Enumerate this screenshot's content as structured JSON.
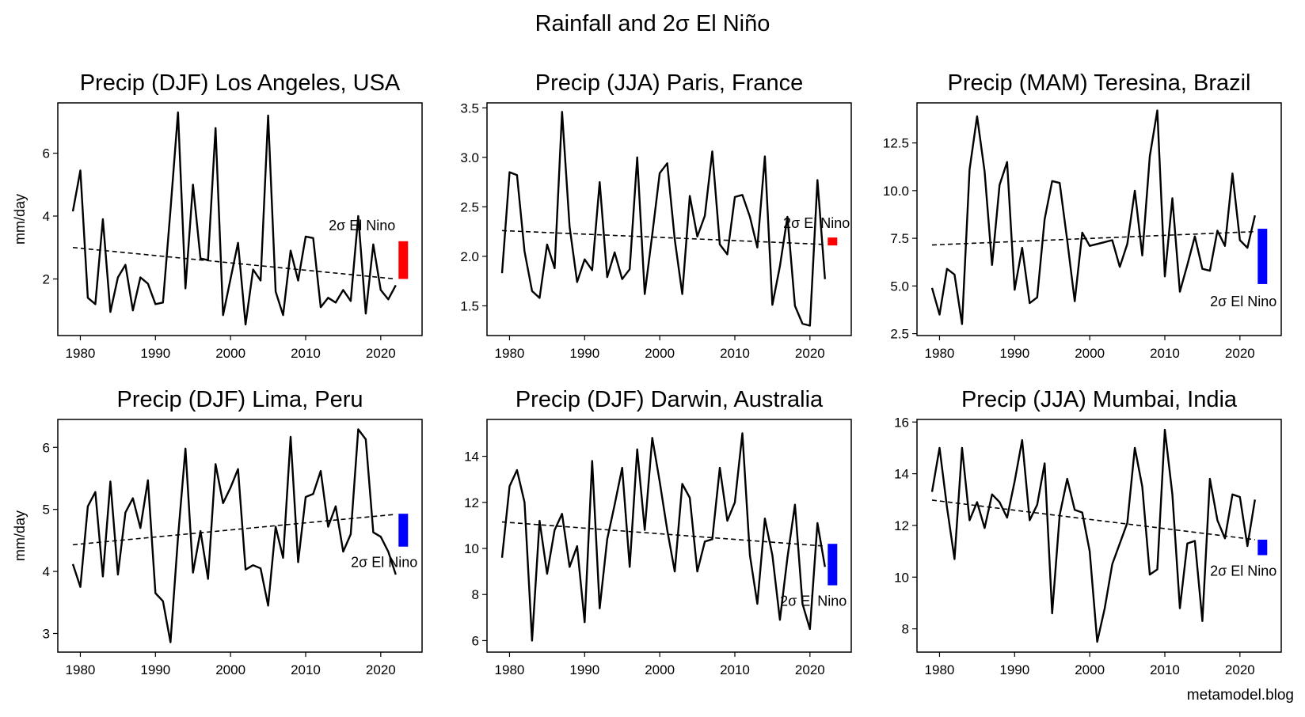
{
  "figure": {
    "title": "Rainfall and 2σ El Niño",
    "watermark": "metamodel.blog"
  },
  "colors": {
    "line": "#000000",
    "trend": "#000000",
    "el_nino_positive": "#ff0000",
    "el_nino_negative": "#0000ff"
  },
  "chart_data": [
    {
      "type": "line",
      "title": "Precip (DJF) Los Angeles, USA",
      "ylabel": "mm/day",
      "xlim": [
        1977,
        2025.5
      ],
      "ylim": [
        0.2,
        7.6
      ],
      "xticks": [
        1980,
        1990,
        2000,
        2010,
        2020
      ],
      "yticks": [
        2,
        4,
        6
      ],
      "x": [
        1979,
        1980,
        1981,
        1982,
        1983,
        1984,
        1985,
        1986,
        1987,
        1988,
        1989,
        1990,
        1991,
        1992,
        1993,
        1994,
        1995,
        1996,
        1997,
        1998,
        1999,
        2000,
        2001,
        2002,
        2003,
        2004,
        2005,
        2006,
        2007,
        2008,
        2009,
        2010,
        2011,
        2012,
        2013,
        2014,
        2015,
        2016,
        2017,
        2018,
        2019,
        2020,
        2021,
        2022
      ],
      "y": [
        4.15,
        5.45,
        1.4,
        1.2,
        3.9,
        0.95,
        2.05,
        2.45,
        1.0,
        2.05,
        1.85,
        1.2,
        1.25,
        4.2,
        7.3,
        1.7,
        5.0,
        2.65,
        2.6,
        6.8,
        0.85,
        2.0,
        3.15,
        0.55,
        2.3,
        1.95,
        7.2,
        1.6,
        0.85,
        2.9,
        1.95,
        3.35,
        3.3,
        1.1,
        1.4,
        1.25,
        1.65,
        1.3,
        4.0,
        0.9,
        3.1,
        1.65,
        1.35,
        1.8
      ],
      "trend": {
        "x": [
          1979,
          2022
        ],
        "y": [
          3.0,
          2.0
        ]
      },
      "el_nino": {
        "label": "2σ El Nino",
        "x": 2023,
        "y0": 2.0,
        "y1": 3.2,
        "color": "#ff0000"
      }
    },
    {
      "type": "line",
      "title": "Precip (JJA) Paris, France",
      "ylabel": "",
      "xlim": [
        1977,
        2025.5
      ],
      "ylim": [
        1.2,
        3.55
      ],
      "xticks": [
        1980,
        1990,
        2000,
        2010,
        2020
      ],
      "yticks": [
        1.5,
        2.0,
        2.5,
        3.0,
        3.5
      ],
      "x": [
        1979,
        1980,
        1981,
        1982,
        1983,
        1984,
        1985,
        1986,
        1987,
        1988,
        1989,
        1990,
        1991,
        1992,
        1993,
        1994,
        1995,
        1996,
        1997,
        1998,
        1999,
        2000,
        2001,
        2002,
        2003,
        2004,
        2005,
        2006,
        2007,
        2008,
        2009,
        2010,
        2011,
        2012,
        2013,
        2014,
        2015,
        2016,
        2017,
        2018,
        2019,
        2020,
        2021,
        2022
      ],
      "y": [
        1.83,
        2.85,
        2.82,
        2.05,
        1.65,
        1.58,
        2.12,
        1.88,
        3.46,
        2.3,
        1.74,
        1.97,
        1.86,
        2.75,
        1.79,
        2.04,
        1.77,
        1.87,
        3.0,
        1.62,
        2.22,
        2.84,
        2.94,
        2.17,
        1.62,
        2.61,
        2.2,
        2.41,
        3.06,
        2.12,
        2.02,
        2.6,
        2.62,
        2.4,
        2.09,
        3.01,
        1.51,
        1.9,
        2.4,
        1.5,
        1.32,
        1.3,
        2.77,
        1.77
      ],
      "trend": {
        "x": [
          1979,
          2022
        ],
        "y": [
          2.26,
          2.12
        ]
      },
      "el_nino": {
        "label": "2σ El Nino",
        "x": 2023,
        "y0": 2.11,
        "y1": 2.19,
        "color": "#ff0000"
      }
    },
    {
      "type": "line",
      "title": "Precip (MAM) Teresina, Brazil",
      "ylabel": "",
      "xlim": [
        1977,
        2025.5
      ],
      "ylim": [
        2.4,
        14.6
      ],
      "xticks": [
        1980,
        1990,
        2000,
        2010,
        2020
      ],
      "yticks": [
        2.5,
        5.0,
        7.5,
        10.0,
        12.5
      ],
      "x": [
        1979,
        1980,
        1981,
        1982,
        1983,
        1984,
        1985,
        1986,
        1987,
        1988,
        1989,
        1990,
        1991,
        1992,
        1993,
        1994,
        1995,
        1996,
        1997,
        1998,
        1999,
        2000,
        2001,
        2002,
        2003,
        2004,
        2005,
        2006,
        2007,
        2008,
        2009,
        2010,
        2011,
        2012,
        2013,
        2014,
        2015,
        2016,
        2017,
        2018,
        2019,
        2020,
        2021,
        2022
      ],
      "y": [
        4.9,
        3.5,
        5.9,
        5.6,
        3.0,
        11.1,
        13.9,
        11.0,
        6.1,
        10.3,
        11.5,
        4.8,
        7.0,
        4.1,
        4.4,
        8.5,
        10.5,
        10.4,
        7.4,
        4.2,
        7.8,
        7.1,
        7.2,
        7.3,
        7.4,
        6.0,
        7.2,
        10.0,
        6.6,
        11.8,
        14.2,
        5.5,
        9.6,
        4.7,
        6.1,
        7.6,
        5.9,
        5.8,
        7.9,
        7.1,
        10.9,
        7.4,
        7.0,
        8.7
      ],
      "trend": {
        "x": [
          1979,
          2022
        ],
        "y": [
          7.15,
          7.85
        ]
      },
      "el_nino": {
        "label": "2σ El Nino",
        "x": 2023,
        "y0": 5.1,
        "y1": 8.0,
        "color": "#0000ff"
      }
    },
    {
      "type": "line",
      "title": "Precip (DJF) Lima, Peru",
      "ylabel": "mm/day",
      "xlim": [
        1977,
        2025.5
      ],
      "ylim": [
        2.7,
        6.45
      ],
      "xticks": [
        1980,
        1990,
        2000,
        2010,
        2020
      ],
      "yticks": [
        3,
        4,
        5,
        6
      ],
      "x": [
        1979,
        1980,
        1981,
        1982,
        1983,
        1984,
        1985,
        1986,
        1987,
        1988,
        1989,
        1990,
        1991,
        1992,
        1993,
        1994,
        1995,
        1996,
        1997,
        1998,
        1999,
        2000,
        2001,
        2002,
        2003,
        2004,
        2005,
        2006,
        2007,
        2008,
        2009,
        2010,
        2011,
        2012,
        2013,
        2014,
        2015,
        2016,
        2017,
        2018,
        2019,
        2020,
        2021,
        2022
      ],
      "y": [
        4.12,
        3.75,
        5.05,
        5.28,
        3.92,
        5.45,
        3.95,
        4.95,
        5.18,
        4.7,
        5.47,
        3.65,
        3.52,
        2.86,
        4.55,
        5.98,
        3.98,
        4.65,
        3.88,
        5.73,
        5.1,
        5.35,
        5.65,
        4.03,
        4.1,
        4.05,
        3.45,
        4.72,
        4.22,
        6.17,
        4.15,
        5.2,
        5.25,
        5.62,
        4.72,
        5.05,
        4.32,
        4.6,
        6.29,
        6.13,
        4.63,
        4.56,
        4.32,
        3.95
      ],
      "trend": {
        "x": [
          1979,
          2022
        ],
        "y": [
          4.43,
          4.92
        ]
      },
      "el_nino": {
        "label": "2σ El Nino",
        "x": 2023,
        "y0": 4.4,
        "y1": 4.93,
        "color": "#0000ff"
      }
    },
    {
      "type": "line",
      "title": "Precip (DJF) Darwin, Australia",
      "ylabel": "",
      "xlim": [
        1977,
        2025.5
      ],
      "ylim": [
        5.5,
        15.6
      ],
      "xticks": [
        1980,
        1990,
        2000,
        2010,
        2020
      ],
      "yticks": [
        6,
        8,
        10,
        12,
        14
      ],
      "x": [
        1979,
        1980,
        1981,
        1982,
        1983,
        1984,
        1985,
        1986,
        1987,
        1988,
        1989,
        1990,
        1991,
        1992,
        1993,
        1994,
        1995,
        1996,
        1997,
        1998,
        1999,
        2000,
        2001,
        2002,
        2003,
        2004,
        2005,
        2006,
        2007,
        2008,
        2009,
        2010,
        2011,
        2012,
        2013,
        2014,
        2015,
        2016,
        2017,
        2018,
        2019,
        2020,
        2021,
        2022
      ],
      "y": [
        9.6,
        12.7,
        13.4,
        12.0,
        6.0,
        11.2,
        8.9,
        10.8,
        11.5,
        9.2,
        10.1,
        6.8,
        13.8,
        7.4,
        10.4,
        11.9,
        13.5,
        9.2,
        14.3,
        10.8,
        14.8,
        12.9,
        10.8,
        9.0,
        12.8,
        12.2,
        9.0,
        10.3,
        10.4,
        13.5,
        11.2,
        12.0,
        15.0,
        9.7,
        7.6,
        11.3,
        9.7,
        6.9,
        9.6,
        11.9,
        7.6,
        6.5,
        11.1,
        9.2
      ],
      "trend": {
        "x": [
          1979,
          2022
        ],
        "y": [
          11.15,
          10.1
        ]
      },
      "el_nino": {
        "label": "2σ El Nino",
        "x": 2023,
        "y0": 8.4,
        "y1": 10.2,
        "color": "#0000ff"
      }
    },
    {
      "type": "line",
      "title": "Precip (JJA) Mumbai, India",
      "ylabel": "",
      "xlim": [
        1977,
        2025.5
      ],
      "ylim": [
        7.1,
        16.1
      ],
      "xticks": [
        1980,
        1990,
        2000,
        2010,
        2020
      ],
      "yticks": [
        8,
        10,
        12,
        14,
        16
      ],
      "x": [
        1979,
        1980,
        1981,
        1982,
        1983,
        1984,
        1985,
        1986,
        1987,
        1988,
        1989,
        1990,
        1991,
        1992,
        1993,
        1994,
        1995,
        1996,
        1997,
        1998,
        1999,
        2000,
        2001,
        2002,
        2003,
        2004,
        2005,
        2006,
        2007,
        2008,
        2009,
        2010,
        2011,
        2012,
        2013,
        2014,
        2015,
        2016,
        2017,
        2018,
        2019,
        2020,
        2021,
        2022
      ],
      "y": [
        13.3,
        15.0,
        12.7,
        10.7,
        15.0,
        12.2,
        12.9,
        11.9,
        13.2,
        12.9,
        12.3,
        13.7,
        15.3,
        12.2,
        12.8,
        14.4,
        8.6,
        12.4,
        13.8,
        12.6,
        12.5,
        11.0,
        7.5,
        8.8,
        10.5,
        11.3,
        12.1,
        15.0,
        13.5,
        10.1,
        10.3,
        15.7,
        13.2,
        8.8,
        11.3,
        11.4,
        8.3,
        13.8,
        12.2,
        11.5,
        13.2,
        13.1,
        11.2,
        13.0
      ],
      "trend": {
        "x": [
          1979,
          2022
        ],
        "y": [
          12.98,
          11.45
        ]
      },
      "el_nino": {
        "label": "2σ El Nino",
        "x": 2023,
        "y0": 10.85,
        "y1": 11.45,
        "color": "#0000ff"
      }
    }
  ]
}
